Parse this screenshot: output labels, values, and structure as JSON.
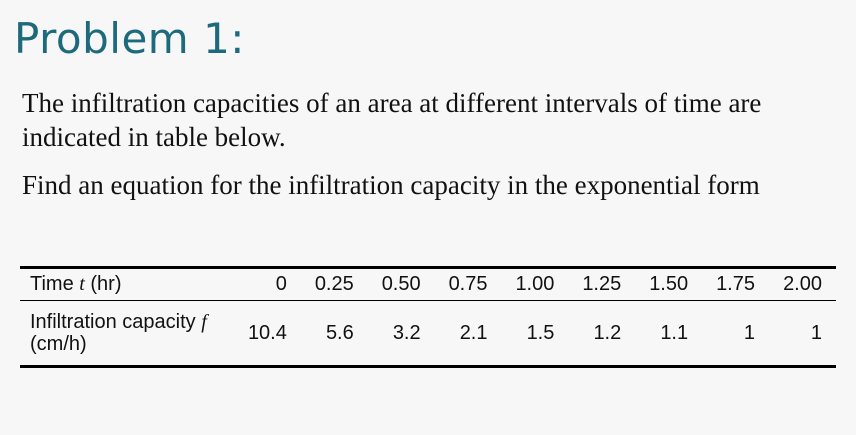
{
  "title": "Problem 1:",
  "paragraphs": [
    "The infiltration capacities of an area at different intervals of time are indicated in table below.",
    "Find an equation for the infiltration capacity in the exponential form"
  ],
  "table": {
    "header": {
      "label": {
        "text": "Time",
        "symbol": "t",
        "unit": "(hr)"
      },
      "cells": [
        "0",
        "0.25",
        "0.50",
        "0.75",
        "1.00",
        "1.25",
        "1.50",
        "1.75",
        "2.00"
      ]
    },
    "rows": [
      {
        "label": {
          "text": "Infiltration capacity",
          "symbol": "f",
          "unit": "(cm/h)"
        },
        "cells": [
          "10.4",
          "5.6",
          "3.2",
          "2.1",
          "1.5",
          "1.2",
          "1.1",
          "1",
          "1"
        ]
      }
    ]
  }
}
